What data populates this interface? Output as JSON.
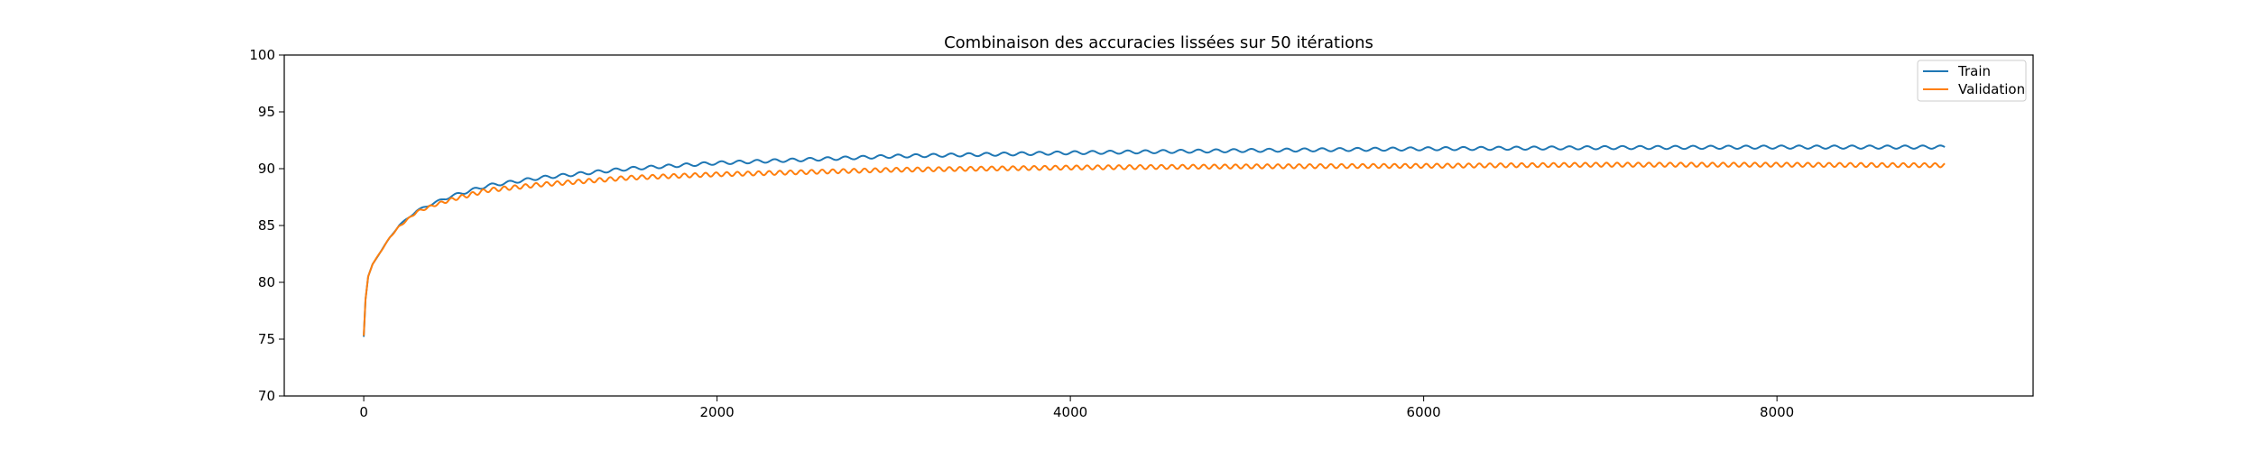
{
  "chart_data": {
    "type": "line",
    "title": "Combinaison des accuracies lissées sur 50 itérations",
    "xlabel": "",
    "ylabel": "",
    "xlim": [
      -450,
      9450
    ],
    "ylim": [
      70,
      100
    ],
    "x_ticks": [
      0,
      2000,
      4000,
      6000,
      8000
    ],
    "y_ticks": [
      70,
      75,
      80,
      85,
      90,
      95,
      100
    ],
    "grid": false,
    "legend_position": "top-right",
    "x_start": 0,
    "x_end": 8950,
    "x_step": 5,
    "series": [
      {
        "name": "Train",
        "color": "#1f77b4",
        "anchors": [
          [
            0,
            75.2
          ],
          [
            10,
            78.5
          ],
          [
            25,
            80.5
          ],
          [
            50,
            81.6
          ],
          [
            100,
            82.8
          ],
          [
            150,
            84.0
          ],
          [
            200,
            85.0
          ],
          [
            300,
            86.3
          ],
          [
            400,
            87.0
          ],
          [
            500,
            87.6
          ],
          [
            700,
            88.5
          ],
          [
            1000,
            89.2
          ],
          [
            1500,
            90.0
          ],
          [
            2000,
            90.5
          ],
          [
            2500,
            90.8
          ],
          [
            3000,
            91.1
          ],
          [
            4000,
            91.4
          ],
          [
            5000,
            91.6
          ],
          [
            6000,
            91.75
          ],
          [
            7000,
            91.85
          ],
          [
            8000,
            91.9
          ],
          [
            8950,
            91.9
          ]
        ],
        "oscillation": {
          "amplitude": 0.14,
          "period": 100
        }
      },
      {
        "name": "Validation",
        "color": "#ff7f0e",
        "anchors": [
          [
            0,
            75.3
          ],
          [
            10,
            78.5
          ],
          [
            25,
            80.5
          ],
          [
            50,
            81.6
          ],
          [
            100,
            82.8
          ],
          [
            150,
            84.0
          ],
          [
            200,
            84.9
          ],
          [
            300,
            86.2
          ],
          [
            400,
            86.8
          ],
          [
            500,
            87.3
          ],
          [
            700,
            88.1
          ],
          [
            1000,
            88.6
          ],
          [
            1500,
            89.2
          ],
          [
            2000,
            89.5
          ],
          [
            2500,
            89.7
          ],
          [
            3000,
            89.9
          ],
          [
            4000,
            90.1
          ],
          [
            5000,
            90.2
          ],
          [
            6000,
            90.25
          ],
          [
            7000,
            90.35
          ],
          [
            8000,
            90.35
          ],
          [
            8950,
            90.3
          ]
        ],
        "oscillation": {
          "amplitude": 0.18,
          "period": 60
        }
      }
    ]
  }
}
